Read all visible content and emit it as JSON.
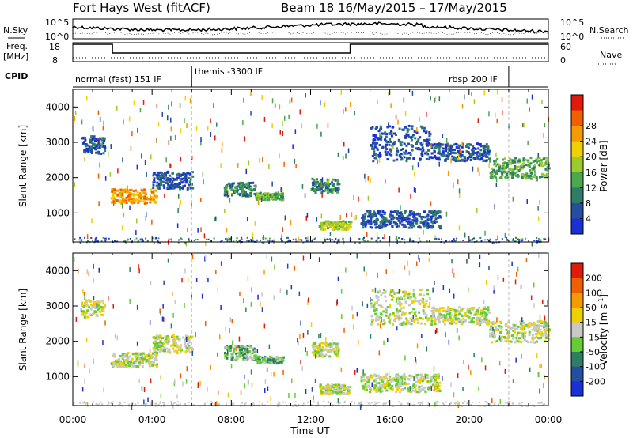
{
  "header": {
    "title": "Fort Hays West (fitACF)",
    "beam_date": "Beam 18  16/May/2015 – 17/May/2015"
  },
  "top_panels": {
    "nsky_label": "N.Sky",
    "nsky_top": "10^5",
    "nsky_bottom": "10^0",
    "nsearch_label": "N.Search",
    "nsearch_top": "10^5",
    "nsearch_bottom": "10^0",
    "freq_label_1": "Freq.",
    "freq_label_2": "[MHz]",
    "freq_top": "18",
    "freq_bottom": "8",
    "nave_label": "Nave",
    "nave_top": "60",
    "nave_bottom": "0",
    "cpid_label": "CPID",
    "cpid_modes": [
      {
        "label": "normal (fast) 151 IF",
        "start_h": 0
      },
      {
        "label": "themis -3300 IF",
        "start_h": 6
      },
      {
        "label": "rbsp 200 IF",
        "start_h": 22
      }
    ],
    "freq_steps": [
      {
        "from_h": 0,
        "to_h": 2,
        "mhz": 18
      },
      {
        "from_h": 2,
        "to_h": 14,
        "mhz": 13
      },
      {
        "from_h": 14,
        "to_h": 24,
        "mhz": 18
      }
    ]
  },
  "chart_data": [
    {
      "type": "heatmap",
      "panel": "power",
      "ylabel": "Slant Range [km]",
      "ylim": [
        180,
        4500
      ],
      "yticks": [
        1000,
        2000,
        3000,
        4000
      ],
      "xlim": [
        0,
        24
      ],
      "colorbar": {
        "label": "Power [dB]",
        "ticks": [
          "4",
          "8",
          "12",
          "16",
          "20",
          "24",
          "28"
        ],
        "colors": [
          "#1a2fd6",
          "#244fa0",
          "#2e7d66",
          "#4ca84c",
          "#9ccc2a",
          "#f0d000",
          "#f59a00",
          "#f06000",
          "#e21a0a"
        ]
      },
      "features": [
        {
          "t0": 0.4,
          "t1": 1.6,
          "r0": 2700,
          "r1": 3200,
          "level": 1
        },
        {
          "t0": 1.9,
          "t1": 4.2,
          "r0": 1300,
          "r1": 1700,
          "level": 6
        },
        {
          "t0": 4.0,
          "t1": 6.0,
          "r0": 1700,
          "r1": 2200,
          "level": 1
        },
        {
          "t0": 7.6,
          "t1": 9.2,
          "r0": 1500,
          "r1": 1900,
          "level": 2
        },
        {
          "t0": 9.2,
          "t1": 10.6,
          "r0": 1400,
          "r1": 1600,
          "level": 3
        },
        {
          "t0": 12.0,
          "t1": 13.4,
          "r0": 1600,
          "r1": 2000,
          "level": 2
        },
        {
          "t0": 12.4,
          "t1": 14.0,
          "r0": 550,
          "r1": 800,
          "level": 4
        },
        {
          "t0": 14.5,
          "t1": 18.5,
          "r0": 600,
          "r1": 1100,
          "level": 1
        },
        {
          "t0": 15.0,
          "t1": 18.0,
          "r0": 2500,
          "r1": 3500,
          "level": 1
        },
        {
          "t0": 18.0,
          "t1": 21.0,
          "r0": 2500,
          "r1": 3000,
          "level": 1
        },
        {
          "t0": 21.0,
          "t1": 24.0,
          "r0": 2000,
          "r1": 2600,
          "level": 3
        }
      ]
    },
    {
      "type": "heatmap",
      "panel": "velocity",
      "ylabel": "Slant Range [km]",
      "xlabel": "Time UT",
      "ylim": [
        180,
        4500
      ],
      "yticks": [
        1000,
        2000,
        3000,
        4000
      ],
      "xlim": [
        0,
        24
      ],
      "xticks": [
        "00:00",
        "04:00",
        "08:00",
        "12:00",
        "16:00",
        "20:00",
        "00:00"
      ],
      "colorbar": {
        "label": "Velocity [m s^-1]",
        "ticks": [
          "200",
          "100",
          "50",
          "15",
          "-15",
          "-50",
          "-100",
          "-200"
        ],
        "colors": [
          "#1a2fd6",
          "#244fa0",
          "#2e7d66",
          "#66cc33",
          "#c8c8c8",
          "#f0d000",
          "#f59a00",
          "#f06000",
          "#e21a0a"
        ]
      },
      "features": [
        {
          "t0": 0.4,
          "t1": 1.6,
          "r0": 2700,
          "r1": 3200,
          "level": 4
        },
        {
          "t0": 1.9,
          "t1": 4.2,
          "r0": 1300,
          "r1": 1700,
          "level": 4
        },
        {
          "t0": 4.0,
          "t1": 6.0,
          "r0": 1700,
          "r1": 2200,
          "level": 4
        },
        {
          "t0": 7.6,
          "t1": 9.2,
          "r0": 1500,
          "r1": 1900,
          "level": 3
        },
        {
          "t0": 9.2,
          "t1": 10.6,
          "r0": 1400,
          "r1": 1600,
          "level": 3
        },
        {
          "t0": 12.0,
          "t1": 13.4,
          "r0": 1600,
          "r1": 2000,
          "level": 4
        },
        {
          "t0": 12.4,
          "t1": 14.0,
          "r0": 550,
          "r1": 800,
          "level": 4
        },
        {
          "t0": 14.5,
          "t1": 18.5,
          "r0": 600,
          "r1": 1100,
          "level": 4
        },
        {
          "t0": 15.0,
          "t1": 18.0,
          "r0": 2500,
          "r1": 3500,
          "level": 4
        },
        {
          "t0": 18.0,
          "t1": 21.0,
          "r0": 2500,
          "r1": 3000,
          "level": 4
        },
        {
          "t0": 21.0,
          "t1": 24.0,
          "r0": 2000,
          "r1": 2600,
          "level": 4
        }
      ]
    }
  ]
}
